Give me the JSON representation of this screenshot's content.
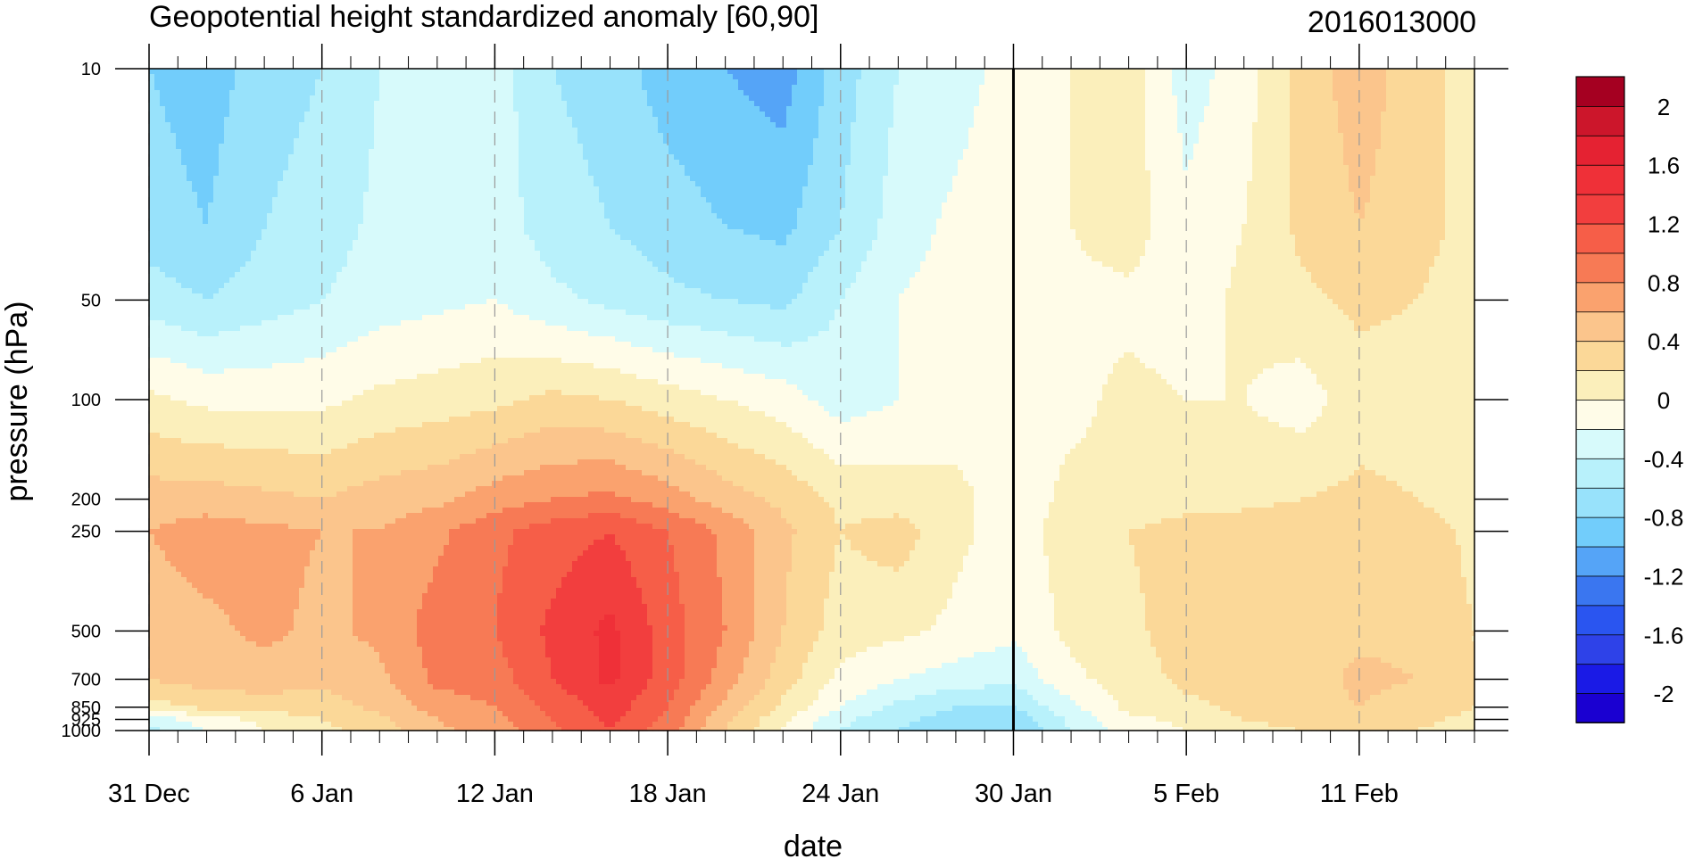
{
  "chart_data": {
    "type": "heatmap",
    "title": "Geopotential height standardized anomaly [60,90]",
    "subtitle": "2016013000",
    "xlabel": "date",
    "ylabel": "pressure (hPa)",
    "y_scale": "log",
    "y_reversed": true,
    "ylim": [
      1000,
      10
    ],
    "xlim": [
      "2015-12-31",
      "2016-02-15"
    ],
    "x_tick_labels": [
      "31 Dec",
      "6 Jan",
      "12 Jan",
      "18 Jan",
      "24 Jan",
      "30 Jan",
      "5 Feb",
      "11 Feb"
    ],
    "x_tick_dates": [
      "2015-12-31",
      "2016-01-06",
      "2016-01-12",
      "2016-01-18",
      "2016-01-24",
      "2016-01-30",
      "2016-02-05",
      "2016-02-11"
    ],
    "y_tick_labels": [
      "10",
      "50",
      "100",
      "200",
      "250",
      "500",
      "700",
      "850",
      "925",
      "1000"
    ],
    "y_tick_values": [
      10,
      50,
      100,
      200,
      250,
      500,
      700,
      850,
      925,
      1000
    ],
    "reference_line_date": "2016-01-30",
    "grid": "dashed vertical lines at x ticks",
    "colorbar": {
      "position": "right",
      "levels": [
        -2.2,
        -2,
        -1.8,
        -1.6,
        -1.4,
        -1.2,
        -1,
        -0.8,
        -0.6,
        -0.4,
        -0.2,
        0,
        0.2,
        0.4,
        0.6,
        0.8,
        1,
        1.2,
        1.4,
        1.6,
        1.8,
        2,
        2.2
      ],
      "labels": [
        "2",
        "1.6",
        "1.2",
        "0.8",
        "0.4",
        "0",
        "-0.4",
        "-0.8",
        "-1.2",
        "-1.6",
        "-2"
      ],
      "label_values": [
        2,
        1.6,
        1.2,
        0.8,
        0.4,
        0,
        -0.4,
        -0.8,
        -1.2,
        -1.6,
        -2
      ],
      "colors": [
        "#1a00d1",
        "#1a1ae6",
        "#2e42e8",
        "#2a55f0",
        "#3a76f0",
        "#55a4f7",
        "#72cdfb",
        "#98e2fb",
        "#b8f1fb",
        "#d7fafb",
        "#fffce8",
        "#fbefbb",
        "#fbd898",
        "#fbc58c",
        "#faa26e",
        "#f77a55",
        "#f65e48",
        "#f23e3e",
        "#ef3038",
        "#e52232",
        "#cc162b",
        "#a50021"
      ]
    },
    "field": {
      "pressure_levels": [
        10,
        30,
        50,
        100,
        200,
        250,
        500,
        700,
        850,
        925,
        1000
      ],
      "dates": [
        "2015-12-31",
        "2016-01-02",
        "2016-01-04",
        "2016-01-06",
        "2016-01-08",
        "2016-01-10",
        "2016-01-12",
        "2016-01-14",
        "2016-01-16",
        "2016-01-18",
        "2016-01-20",
        "2016-01-22",
        "2016-01-24",
        "2016-01-26",
        "2016-01-28",
        "2016-01-30",
        "2016-02-01",
        "2016-02-03",
        "2016-02-05",
        "2016-02-07",
        "2016-02-09",
        "2016-02-11",
        "2016-02-13",
        "2016-02-15"
      ],
      "values": [
        [
          -0.8,
          -0.9,
          -0.7,
          -0.6,
          -0.4,
          -0.3,
          -0.3,
          -0.6,
          -0.7,
          -0.9,
          -1.0,
          -1.1,
          -0.7,
          -0.4,
          -0.3,
          -0.1,
          0.0,
          0.1,
          -0.3,
          -0.1,
          0.3,
          0.5,
          0.3,
          0.1
        ],
        [
          -0.7,
          -0.8,
          -0.6,
          -0.5,
          -0.35,
          -0.3,
          -0.3,
          -0.5,
          -0.6,
          -0.7,
          -0.8,
          -0.85,
          -0.6,
          -0.3,
          -0.15,
          -0.05,
          0.0,
          0.1,
          -0.15,
          0.0,
          0.25,
          0.4,
          0.3,
          0.1
        ],
        [
          -0.5,
          -0.6,
          -0.5,
          -0.4,
          -0.3,
          -0.25,
          -0.2,
          -0.35,
          -0.45,
          -0.55,
          -0.6,
          -0.65,
          -0.4,
          -0.2,
          -0.1,
          0.0,
          -0.05,
          -0.05,
          -0.1,
          0.05,
          0.15,
          0.25,
          0.2,
          0.05
        ],
        [
          0.05,
          -0.05,
          -0.05,
          -0.05,
          0.05,
          0.1,
          0.15,
          0.25,
          0.2,
          0.1,
          0.0,
          -0.1,
          -0.3,
          -0.2,
          -0.1,
          -0.05,
          -0.05,
          0.05,
          0.0,
          0.0,
          -0.1,
          0.1,
          0.1,
          0.05
        ],
        [
          0.5,
          0.5,
          0.45,
          0.4,
          0.5,
          0.55,
          0.7,
          0.8,
          0.85,
          0.7,
          0.5,
          0.35,
          0.15,
          0.1,
          0.05,
          -0.1,
          0.05,
          0.05,
          0.1,
          0.15,
          0.2,
          0.25,
          0.2,
          0.1
        ],
        [
          0.6,
          0.7,
          0.65,
          0.6,
          0.6,
          0.75,
          0.95,
          1.1,
          1.2,
          1.0,
          0.75,
          0.45,
          0.2,
          0.3,
          0.05,
          -0.1,
          0.1,
          0.2,
          0.3,
          0.3,
          0.35,
          0.35,
          0.3,
          0.15
        ],
        [
          0.5,
          0.55,
          0.65,
          0.55,
          0.65,
          0.9,
          1.0,
          1.25,
          1.45,
          1.1,
          0.8,
          0.4,
          0.1,
          0.05,
          -0.05,
          -0.15,
          0.05,
          0.15,
          0.3,
          0.3,
          0.3,
          0.35,
          0.35,
          0.2
        ],
        [
          0.4,
          0.5,
          0.5,
          0.45,
          0.55,
          0.85,
          0.9,
          1.2,
          1.45,
          1.1,
          0.7,
          0.3,
          -0.05,
          -0.2,
          -0.3,
          -0.35,
          -0.05,
          0.1,
          0.25,
          0.25,
          0.3,
          0.45,
          0.4,
          0.2
        ],
        [
          0.1,
          0.25,
          0.3,
          0.3,
          0.45,
          0.7,
          0.8,
          1.05,
          1.3,
          1.0,
          0.55,
          0.15,
          -0.2,
          -0.45,
          -0.6,
          -0.6,
          -0.25,
          0.05,
          0.15,
          0.25,
          0.3,
          0.4,
          0.3,
          0.2
        ],
        [
          -0.3,
          -0.1,
          0.05,
          0.2,
          0.35,
          0.6,
          0.75,
          1.0,
          1.25,
          0.95,
          0.45,
          0.05,
          -0.35,
          -0.55,
          -0.7,
          -0.75,
          -0.35,
          -0.05,
          0.05,
          0.2,
          0.25,
          0.3,
          0.25,
          0.15
        ],
        [
          -0.45,
          -0.2,
          0.0,
          0.15,
          0.3,
          0.55,
          0.7,
          0.95,
          1.2,
          0.9,
          0.4,
          0.0,
          -0.4,
          -0.6,
          -0.8,
          -0.8,
          -0.4,
          -0.1,
          0.0,
          0.15,
          0.2,
          0.25,
          0.2,
          0.1
        ]
      ]
    }
  }
}
